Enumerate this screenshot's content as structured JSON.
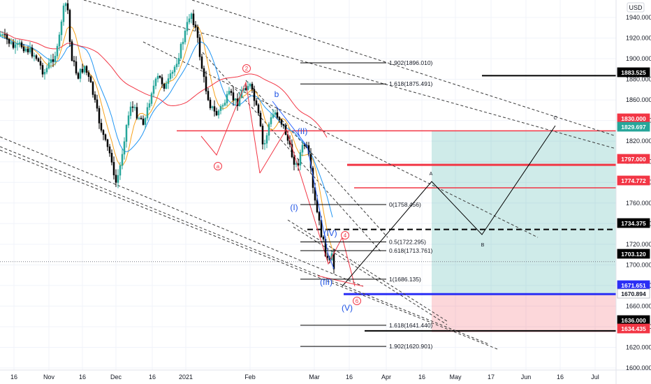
{
  "currency": "USD",
  "chart_data": {
    "type": "candlestick",
    "symbol_currency": "USD",
    "ylim": [
      1585,
      1965
    ],
    "y_ticks": [
      1600,
      1620,
      1640,
      1660,
      1680,
      1700,
      1720,
      1740,
      1760,
      1780,
      1800,
      1820,
      1840,
      1860,
      1880,
      1900,
      1920,
      1940
    ],
    "x_ticks": [
      "16",
      "Nov",
      "16",
      "Dec",
      "16",
      "2021",
      "Feb",
      "Mar",
      "16",
      "Apr",
      "16",
      "May",
      "17",
      "Jun",
      "16",
      "Jul"
    ],
    "grid": true,
    "price_labels": [
      {
        "text": "1883.525",
        "color": "#000000"
      },
      {
        "text": "1830.000",
        "color": "#f23645"
      },
      {
        "text": "1829.697",
        "color": "#26a69a"
      },
      {
        "text": "1797.000",
        "color": "#f23645"
      },
      {
        "text": "1774.772",
        "color": "#f23645"
      },
      {
        "text": "1734.375",
        "color": "#000000"
      },
      {
        "text": "1703.120",
        "color": "#ffffff"
      },
      {
        "text": "1671.651",
        "color": "#2a2ef5"
      },
      {
        "text": "1670.894",
        "color": "#787b86"
      },
      {
        "text": "1636.000",
        "color": "#000000"
      },
      {
        "text": "1634.435",
        "color": "#f23645"
      }
    ],
    "fib_labels": [
      {
        "text": "1.902(1896.010)",
        "value": 1896.01
      },
      {
        "text": "1.618(1875.491)",
        "value": 1875.491
      },
      {
        "text": "0(1758.456)",
        "value": 1758.456
      },
      {
        "text": "0.5(1722.295)",
        "value": 1722.295
      },
      {
        "text": "0.618(1713.761)",
        "value": 1713.761
      },
      {
        "text": "1(1686.135)",
        "value": 1686.135
      },
      {
        "text": "1.618(1641.440)",
        "value": 1641.44
      },
      {
        "text": "1.902(1620.901)",
        "value": 1620.901
      }
    ],
    "wave_labels": [
      {
        "text": "2",
        "style": "circle-red"
      },
      {
        "text": "a",
        "style": "circle-red"
      },
      {
        "text": "b",
        "style": "blue"
      },
      {
        "text": "(II)",
        "style": "blue"
      },
      {
        "text": "(I)",
        "style": "blue"
      },
      {
        "text": "(IV)",
        "style": "blue"
      },
      {
        "text": "4",
        "style": "circle-red"
      },
      {
        "text": "(III)",
        "style": "blue"
      },
      {
        "text": "(V)",
        "style": "blue"
      },
      {
        "text": "6",
        "style": "circle-red"
      },
      {
        "text": "A",
        "style": "plain"
      },
      {
        "text": "B",
        "style": "plain"
      },
      {
        "text": "C",
        "style": "plain"
      }
    ]
  }
}
